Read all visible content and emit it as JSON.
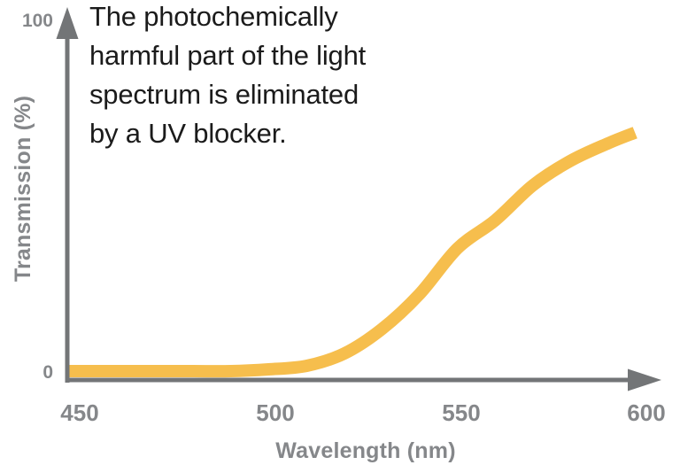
{
  "annotation": {
    "text": "The photochemically harmful part of the light spectrum is eliminated by a UV blocker.",
    "lines": [
      "The photochemically",
      "harmful part of the light",
      "spectrum is eliminated",
      "by a UV blocker."
    ],
    "color": "#1B1B1B"
  },
  "colors": {
    "curve": "#F6BE4D",
    "axis": "#737577",
    "tick_label": "#85878A"
  },
  "chart_data": {
    "type": "line",
    "title": "",
    "xlabel": "Wavelength (nm)",
    "ylabel": "Transmission (%)",
    "x_ticks": [
      "450",
      "500",
      "550",
      "600"
    ],
    "y_ticks": [
      "100",
      "0"
    ],
    "xlim": [
      447,
      600
    ],
    "ylim": [
      0,
      100
    ],
    "grid": false,
    "legend": false,
    "series": [
      {
        "name": "lens-transmission-with-uv-blocker",
        "color": "#F6BE4D",
        "x": [
          447,
          450,
          460,
          470,
          480,
          490,
          500,
          510,
          520,
          530,
          540,
          550,
          560,
          570,
          580,
          590,
          597
        ],
        "y": [
          0,
          0,
          0,
          0,
          0,
          0,
          0.5,
          1.5,
          5,
          12,
          22,
          35,
          43,
          53,
          60,
          65,
          68
        ]
      }
    ]
  }
}
